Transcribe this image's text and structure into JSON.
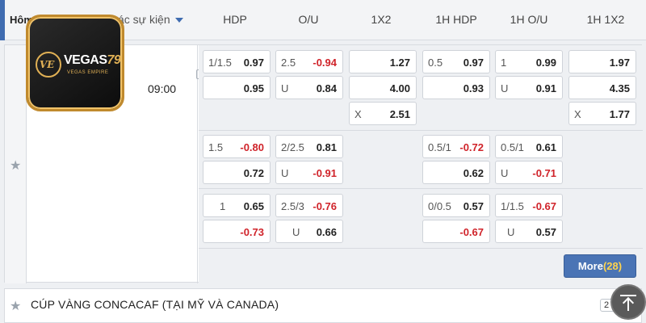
{
  "header": {
    "home": "Hôm",
    "events": "ác sự kiện",
    "columns": [
      "HDP",
      "O/U",
      "1X2",
      "1H HDP",
      "1H O/U",
      "1H 1X2"
    ]
  },
  "logo": {
    "word": "VEGAS",
    "num": "79",
    "sub": "VEGAS EMPIRE",
    "mark": "VE"
  },
  "match": {
    "time": "09:00",
    "rows": [
      {
        "hdp": [
          {
            "label": "1/1.5",
            "value": "0.97"
          },
          {
            "label": "",
            "value": "0.95"
          }
        ],
        "ou": [
          {
            "label": "2.5",
            "value": "-0.94"
          },
          {
            "label": "U",
            "value": "0.84"
          }
        ],
        "x12": [
          {
            "label": "",
            "value": "1.27"
          },
          {
            "label": "",
            "value": "4.00"
          },
          {
            "label": "X",
            "value": "2.51"
          }
        ],
        "h1hdp": [
          {
            "label": "0.5",
            "value": "0.97"
          },
          {
            "label": "",
            "value": "0.93"
          }
        ],
        "h1ou": [
          {
            "label": "1",
            "value": "0.99"
          },
          {
            "label": "U",
            "value": "0.91"
          }
        ],
        "h1x12": [
          {
            "label": "",
            "value": "1.97"
          },
          {
            "label": "",
            "value": "4.35"
          },
          {
            "label": "X",
            "value": "1.77"
          }
        ]
      },
      {
        "hdp": [
          {
            "label": "1.5",
            "value": "-0.80"
          },
          {
            "label": "",
            "value": "0.72"
          }
        ],
        "ou": [
          {
            "label": "2/2.5",
            "value": "0.81"
          },
          {
            "label": "U",
            "value": "-0.91"
          }
        ],
        "h1hdp": [
          {
            "label": "0.5/1",
            "value": "-0.72"
          },
          {
            "label": "",
            "value": "0.62"
          }
        ],
        "h1ou": [
          {
            "label": "0.5/1",
            "value": "0.61"
          },
          {
            "label": "U",
            "value": "-0.71"
          }
        ]
      },
      {
        "hdp": [
          {
            "label": "1",
            "value": "0.65"
          },
          {
            "label": "",
            "value": "-0.73"
          }
        ],
        "ou": [
          {
            "label": "2.5/3",
            "value": "-0.76"
          },
          {
            "label": "U",
            "value": "0.66"
          }
        ],
        "h1hdp": [
          {
            "label": "0/0.5",
            "value": "0.57"
          },
          {
            "label": "",
            "value": "-0.67"
          }
        ],
        "h1ou": [
          {
            "label": "1/1.5",
            "value": "-0.67"
          },
          {
            "label": "U",
            "value": "0.57"
          }
        ]
      }
    ],
    "more_label": "More",
    "more_count": "(28)"
  },
  "league": {
    "name": "CÚP VÀNG CONCACAF (TẠI MỸ VÀ CANADA)",
    "badge": "2"
  },
  "icons": {
    "star": "star-icon",
    "tv": "tv-icon",
    "scroll": "scroll-top-icon",
    "caret": "caret-down-icon"
  },
  "colors": {
    "accent": "#3f6cb0",
    "negative": "#d0232a",
    "more_count": "#ffd34d"
  }
}
